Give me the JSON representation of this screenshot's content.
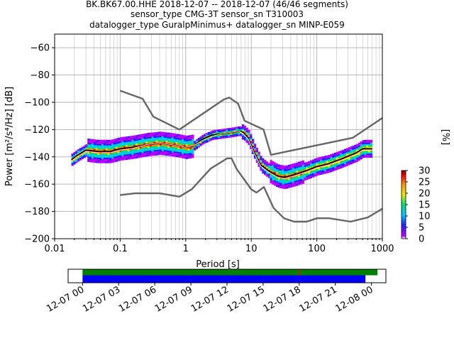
{
  "chart_data": [
    {
      "type": "heatmap",
      "subtype": "probabilistic-power-spectral-density",
      "title_lines": [
        "BK.BK67.00.HHE   2018-12-07 -- 2018-12-07  (46/46 segments)",
        "sensor_type CMG-3T sensor_sn T310003",
        "datalogger_type GuralpMinimus+ datalogger_sn MINP-E059"
      ],
      "xlabel": "Period [s]",
      "ylabel": "Power [m²/s⁴/Hz] [dB]",
      "xscale": "log",
      "xlim": [
        0.01,
        1000
      ],
      "ylim": [
        -200,
        -50
      ],
      "x_ticks": [
        0.01,
        0.1,
        1,
        10,
        100,
        1000
      ],
      "x_tick_labels": [
        "0.01",
        "0.1",
        "1",
        "10",
        "100",
        "1000"
      ],
      "y_ticks": [
        -200,
        -180,
        -160,
        -140,
        -120,
        -100,
        -80,
        -60
      ],
      "y_tick_labels": [
        "−200",
        "−180",
        "−160",
        "−140",
        "−120",
        "−100",
        "−80",
        "−60"
      ],
      "grid": true,
      "colorbar": {
        "label": "[%]",
        "min": 0,
        "max": 30,
        "ticks": [
          0,
          5,
          10,
          15,
          20,
          25,
          30
        ],
        "tick_labels": [
          "0",
          "5",
          "10",
          "15",
          "20",
          "25",
          "30"
        ],
        "colors": [
          "#ffffff",
          "#c000ff",
          "#2020ff",
          "#00c8ff",
          "#00e070",
          "#e8e800",
          "#ff9000",
          "#ff0000",
          "#800000"
        ]
      },
      "series": [
        {
          "role": "mean",
          "color": "#000000",
          "x": [
            0.018,
            0.022,
            0.03,
            0.045,
            0.07,
            0.1,
            0.15,
            0.25,
            0.4,
            0.6,
            0.8,
            1.0,
            1.3,
            1.8,
            2.5,
            3.5,
            5.0,
            6.5,
            7.5,
            9.0,
            11,
            14,
            18,
            25,
            32,
            45,
            70,
            100,
            150,
            250,
            400,
            500,
            700
          ],
          "y": [
            -142,
            -139,
            -135,
            -136,
            -136,
            -134,
            -133,
            -131,
            -130,
            -131,
            -132,
            -133,
            -132,
            -127,
            -124,
            -123,
            -122,
            -121,
            -122,
            -126,
            -136,
            -146,
            -150,
            -154,
            -155,
            -153,
            -150,
            -147,
            -145,
            -141,
            -137,
            -134,
            -134
          ]
        },
        {
          "role": "mode",
          "color": "#ffffff",
          "x": [
            0.018,
            0.022,
            0.03,
            0.045,
            0.07,
            0.1,
            0.15,
            0.25,
            0.4,
            0.6,
            0.8,
            1.0,
            1.3,
            1.8,
            2.5,
            3.5,
            5.0,
            6.5,
            7.5,
            9.0,
            11,
            14,
            18,
            25,
            32,
            45,
            70,
            100,
            150,
            250,
            400,
            500,
            700
          ],
          "y": [
            -143,
            -140,
            -136,
            -137,
            -137,
            -135,
            -134,
            -131,
            -130,
            -131,
            -132,
            -133,
            -132,
            -128,
            -125,
            -123,
            -122,
            -121,
            -123,
            -127,
            -137,
            -147,
            -151,
            -155,
            -156,
            -154,
            -151,
            -148,
            -146,
            -142,
            -138,
            -135,
            -135
          ]
        },
        {
          "role": "high-noise-model",
          "color": "#666666",
          "x": [
            0.1,
            0.22,
            0.32,
            0.8,
            3.8,
            4.6,
            6.3,
            7.9,
            15.4,
            20,
            354.8,
            1000
          ],
          "y": [
            -91.5,
            -97.4,
            -110.5,
            -120,
            -98,
            -96.5,
            -101,
            -113.5,
            -120,
            -138.5,
            -126,
            -111.5
          ]
        },
        {
          "role": "low-noise-model",
          "color": "#666666",
          "x": [
            0.1,
            0.17,
            0.4,
            0.8,
            1.24,
            2.4,
            4.3,
            5.0,
            6.0,
            10.0,
            12.0,
            15.6,
            21.9,
            31.6,
            45,
            70,
            101,
            154,
            328,
            600,
            1000
          ],
          "y": [
            -168,
            -166.7,
            -166.7,
            -169.2,
            -163.7,
            -148.6,
            -141.1,
            -141.1,
            -149,
            -163.8,
            -166.2,
            -162.1,
            -177.5,
            -185,
            -187.5,
            -187.5,
            -185,
            -185,
            -187.5,
            -184.4,
            -178
          ]
        }
      ]
    },
    {
      "type": "timeline",
      "x_tick_labels": [
        "12-07 00",
        "12-07 03",
        "12-07 06",
        "12-07 09",
        "12-07 12",
        "12-07 15",
        "12-07 18",
        "12-07 21",
        "12-08 00"
      ],
      "x_ticks_hours": [
        0,
        3,
        6,
        9,
        12,
        15,
        18,
        21,
        24
      ],
      "xlim_hours": [
        -1.2,
        25.2
      ],
      "bars": [
        {
          "role": "data-coverage",
          "color": "#008000",
          "start_h": 0,
          "end_h": 24.5
        },
        {
          "role": "psd-segments",
          "color": "#0000ff",
          "start_h": 0,
          "end_h": 23.5
        }
      ],
      "gap_marker": {
        "color": "#ff0000",
        "at_h": 18.0
      }
    }
  ]
}
